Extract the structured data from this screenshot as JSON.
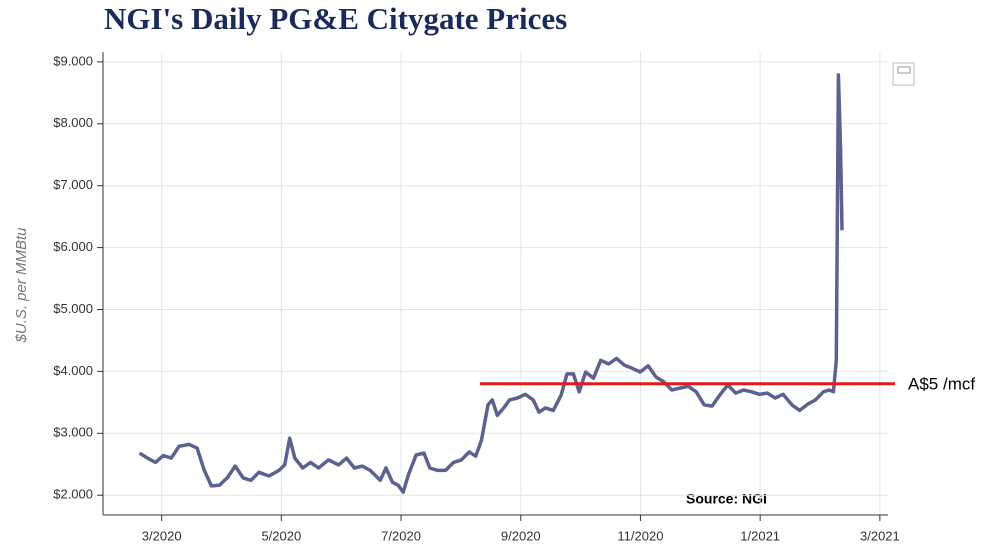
{
  "chart_data": {
    "type": "line",
    "title": "NGI's Daily PG&E Citygate Prices",
    "y_label": "$U.S. per MMBtu",
    "source": "Source: NGI",
    "x": [
      2020.136,
      2020.147,
      2020.158,
      2020.169,
      2020.18,
      2020.191,
      2020.205,
      2020.216,
      2020.226,
      2020.236,
      2020.247,
      2020.258,
      2020.269,
      2020.28,
      2020.291,
      2020.302,
      2020.316,
      2020.33,
      2020.338,
      2020.345,
      2020.352,
      2020.363,
      2020.374,
      2020.385,
      2020.399,
      2020.413,
      2020.424,
      2020.435,
      2020.446,
      2020.457,
      2020.471,
      2020.479,
      2020.488,
      2020.496,
      2020.503,
      2020.51,
      2020.521,
      2020.532,
      2020.54,
      2020.551,
      2020.562,
      2020.573,
      2020.584,
      2020.595,
      2020.604,
      2020.612,
      2020.621,
      2020.627,
      2020.634,
      2020.643,
      2020.651,
      2020.662,
      2020.673,
      2020.684,
      2020.692,
      2020.701,
      2020.712,
      2020.723,
      2020.731,
      2020.74,
      2020.748,
      2020.757,
      2020.768,
      2020.778,
      2020.789,
      2020.8,
      2020.811,
      2020.822,
      2020.833,
      2020.844,
      2020.855,
      2020.866,
      2020.877,
      2020.888,
      2020.9,
      2020.911,
      2020.922,
      2020.933,
      2020.944,
      2020.955,
      2020.966,
      2020.977,
      2020.988,
      2020.999,
      2021.01,
      2021.021,
      2021.032,
      2021.044,
      2021.055,
      2021.066,
      2021.077,
      2021.088,
      2021.096,
      2021.102,
      2021.106,
      2021.109,
      2021.112,
      2021.114
    ],
    "series": [
      {
        "name": "PG&E Citygate",
        "color": "#5d6190",
        "values": [
          2.68,
          2.6,
          2.53,
          2.64,
          2.6,
          2.79,
          2.82,
          2.76,
          2.4,
          2.15,
          2.16,
          2.28,
          2.47,
          2.28,
          2.24,
          2.37,
          2.31,
          2.4,
          2.49,
          2.92,
          2.6,
          2.44,
          2.53,
          2.44,
          2.57,
          2.49,
          2.6,
          2.44,
          2.47,
          2.4,
          2.24,
          2.44,
          2.21,
          2.16,
          2.05,
          2.32,
          2.65,
          2.68,
          2.44,
          2.4,
          2.4,
          2.53,
          2.57,
          2.7,
          2.63,
          2.89,
          3.46,
          3.54,
          3.29,
          3.41,
          3.54,
          3.57,
          3.63,
          3.54,
          3.34,
          3.41,
          3.37,
          3.62,
          3.96,
          3.96,
          3.67,
          3.99,
          3.89,
          4.18,
          4.12,
          4.21,
          4.1,
          4.05,
          3.99,
          4.09,
          3.91,
          3.83,
          3.7,
          3.73,
          3.76,
          3.67,
          3.46,
          3.44,
          3.62,
          3.78,
          3.65,
          3.7,
          3.67,
          3.63,
          3.65,
          3.57,
          3.63,
          3.46,
          3.37,
          3.47,
          3.54,
          3.67,
          3.7,
          3.67,
          4.18,
          8.79,
          7.58,
          6.28
        ]
      }
    ],
    "xlim": [
      2020.085,
      2021.178
    ],
    "ylim": [
      1.68,
      9.16
    ],
    "xticks": [
      {
        "value": 2020.1667,
        "label": "3/2020"
      },
      {
        "value": 2020.3333,
        "label": "5/2020"
      },
      {
        "value": 2020.5,
        "label": "7/2020"
      },
      {
        "value": 2020.6667,
        "label": "9/2020"
      },
      {
        "value": 2020.8333,
        "label": "11/2020"
      },
      {
        "value": 2021.0,
        "label": "1/2021"
      },
      {
        "value": 2021.1667,
        "label": "3/2021"
      }
    ],
    "yticks": [
      {
        "value": 2,
        "label": "$2.000"
      },
      {
        "value": 3,
        "label": "$3.000"
      },
      {
        "value": 4,
        "label": "$4.000"
      },
      {
        "value": 5,
        "label": "$5.000"
      },
      {
        "value": 6,
        "label": "$6.000"
      },
      {
        "value": 7,
        "label": "$7.000"
      },
      {
        "value": 8,
        "label": "$8.000"
      },
      {
        "value": 9,
        "label": "$9.000"
      }
    ],
    "grid": true,
    "reference_line": {
      "value": 3.8,
      "x_start": 2020.61,
      "label": "A$5 /mcf",
      "color": "#e31a1c"
    }
  }
}
